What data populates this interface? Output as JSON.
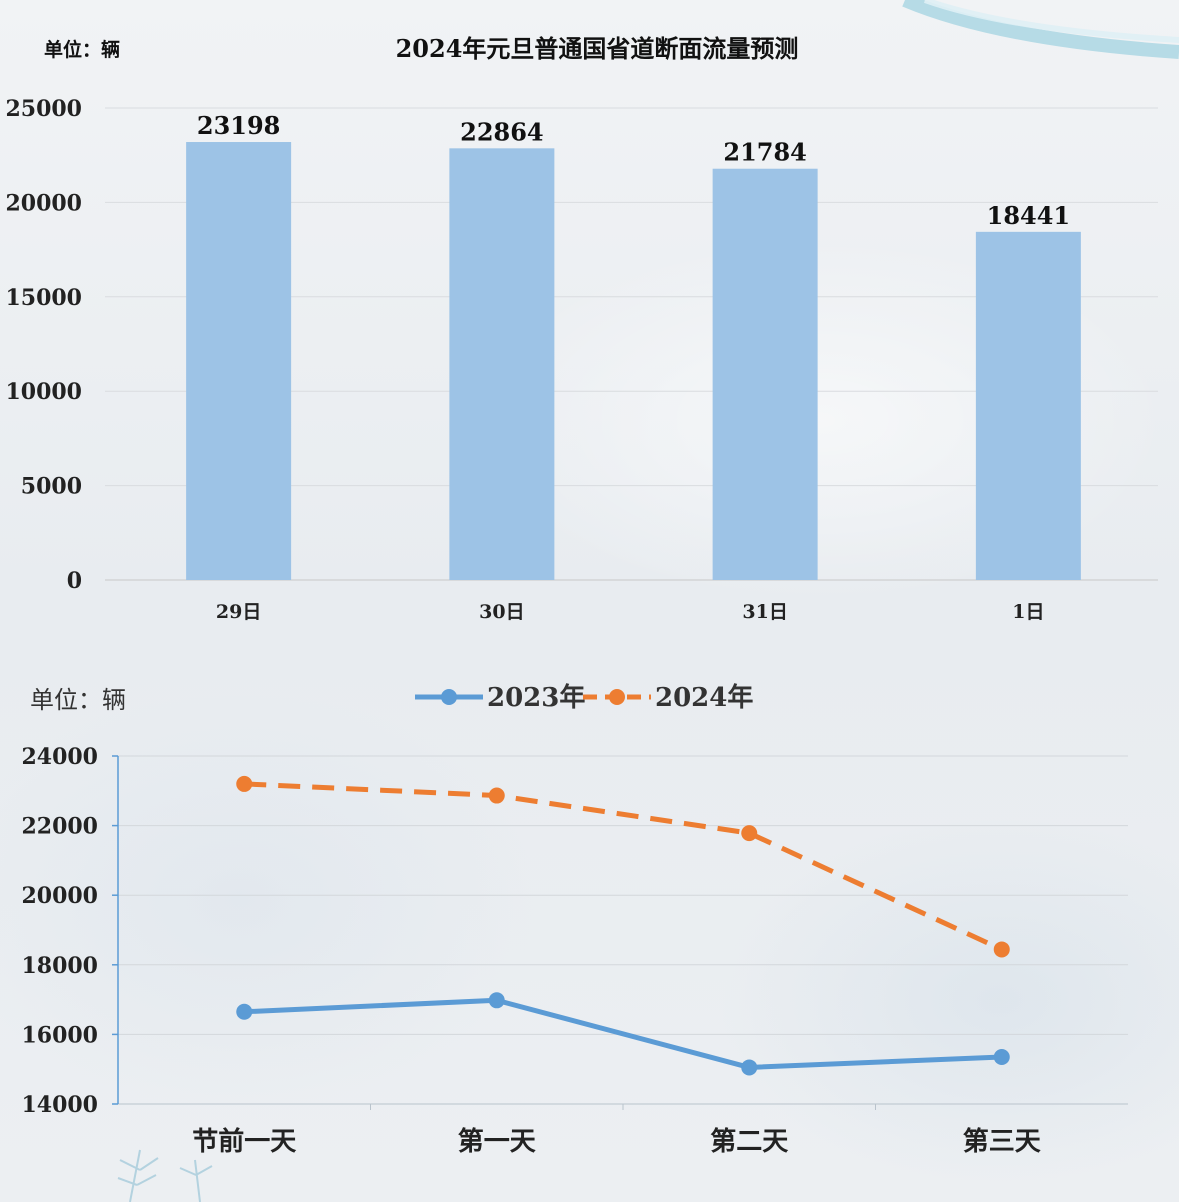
{
  "chart_data": [
    {
      "type": "bar",
      "title": "2024年元旦普通国省道断面流量预测",
      "unit_label": "单位：辆",
      "categories": [
        "29日",
        "30日",
        "31日",
        "1日"
      ],
      "values": [
        23198,
        22864,
        21784,
        18441
      ],
      "yticks": [
        "0",
        "5000",
        "10000",
        "15000",
        "20000",
        "25000"
      ],
      "ylim": [
        0,
        25000
      ],
      "grid": true,
      "bar_color": "#9dc3e6"
    },
    {
      "type": "line",
      "unit_label": "单位：辆",
      "categories": [
        "节前一天",
        "第一天",
        "第二天",
        "第三天"
      ],
      "yticks": [
        "14000",
        "16000",
        "18000",
        "20000",
        "22000",
        "24000"
      ],
      "ylim": [
        14000,
        24000
      ],
      "grid": true,
      "legend_position": "top-center",
      "series": [
        {
          "name": "2023年",
          "values": [
            16650,
            16980,
            15050,
            15350
          ],
          "color": "#5b9bd5",
          "style": "solid"
        },
        {
          "name": "2024年",
          "values": [
            23198,
            22864,
            21784,
            18441
          ],
          "color": "#ed7d31",
          "style": "dashed"
        }
      ]
    }
  ]
}
